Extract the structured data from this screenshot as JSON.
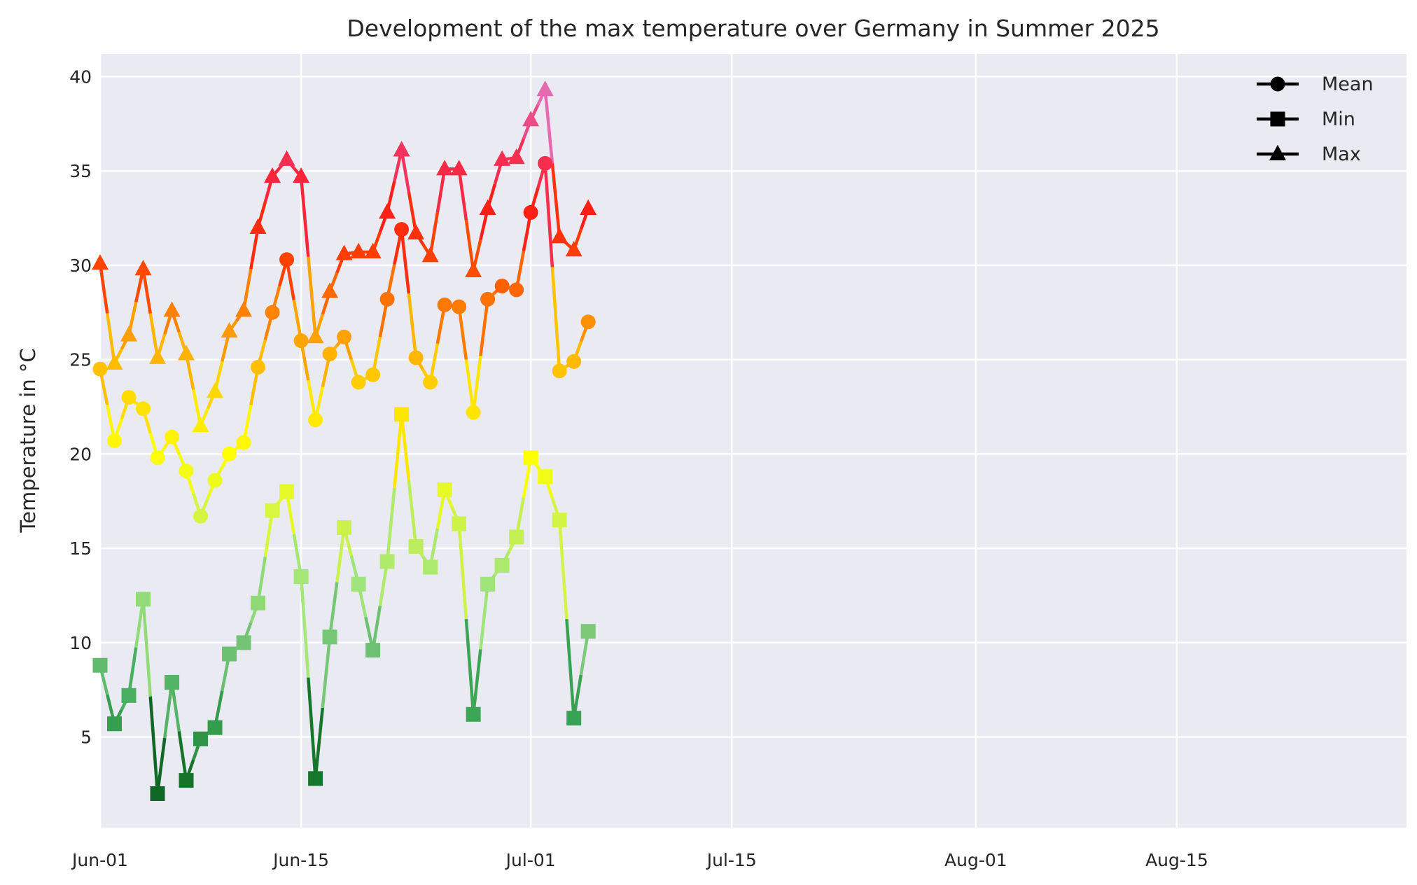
{
  "chart_data": {
    "type": "line",
    "title": "Development of the max temperature over Germany in Summer 2025",
    "xlabel": "",
    "ylabel": "Temperature in °C",
    "x_start": "2025-06-01",
    "x_ticks": [
      {
        "date": "2025-06-01",
        "label": "Jun-01"
      },
      {
        "date": "2025-06-15",
        "label": "Jun-15"
      },
      {
        "date": "2025-07-01",
        "label": "Jul-01"
      },
      {
        "date": "2025-07-15",
        "label": "Jul-15"
      },
      {
        "date": "2025-08-01",
        "label": "Aug-01"
      },
      {
        "date": "2025-08-15",
        "label": "Aug-15"
      }
    ],
    "xlim": [
      "2025-06-01",
      "2025-08-31"
    ],
    "ylim": [
      0.2,
      41.2
    ],
    "y_ticks": [
      5,
      10,
      15,
      20,
      25,
      30,
      35,
      40
    ],
    "grid": true,
    "legend_position": "top-right",
    "color_scale_min": 0,
    "color_scale_max": 40,
    "color_scale": [
      "#00441b",
      "#1a7f2e",
      "#41ab5d",
      "#74c476",
      "#a1e67a",
      "#d4f542",
      "#ffff00",
      "#ffd700",
      "#ff9800",
      "#ff4500",
      "#ff1a1a",
      "#f0386b",
      "#e377c2"
    ],
    "dates": [
      "2025-06-01",
      "2025-06-02",
      "2025-06-03",
      "2025-06-04",
      "2025-06-05",
      "2025-06-06",
      "2025-06-07",
      "2025-06-08",
      "2025-06-09",
      "2025-06-10",
      "2025-06-11",
      "2025-06-12",
      "2025-06-13",
      "2025-06-14",
      "2025-06-15",
      "2025-06-16",
      "2025-06-17",
      "2025-06-18",
      "2025-06-19",
      "2025-06-20",
      "2025-06-21",
      "2025-06-22",
      "2025-06-23",
      "2025-06-24",
      "2025-06-25",
      "2025-06-26",
      "2025-06-27",
      "2025-06-28",
      "2025-06-29",
      "2025-06-30",
      "2025-07-01",
      "2025-07-02",
      "2025-07-03",
      "2025-07-04",
      "2025-07-05"
    ],
    "series": [
      {
        "name": "Mean",
        "marker": "circle",
        "values": [
          24.5,
          20.7,
          23.0,
          22.4,
          19.8,
          20.9,
          19.1,
          16.7,
          18.6,
          20.0,
          20.6,
          24.6,
          27.5,
          30.3,
          26.0,
          21.8,
          25.3,
          26.2,
          23.8,
          24.2,
          28.2,
          31.9,
          25.1,
          23.8,
          27.9,
          27.8,
          22.2,
          28.2,
          28.9,
          28.7,
          32.8,
          35.4,
          24.4,
          24.9,
          27.0
        ]
      },
      {
        "name": "Min",
        "marker": "square",
        "values": [
          8.8,
          5.7,
          7.2,
          12.3,
          2.0,
          7.9,
          2.7,
          4.9,
          5.5,
          9.4,
          10.0,
          12.1,
          17.0,
          18.0,
          13.5,
          2.8,
          10.3,
          16.1,
          13.1,
          9.6,
          14.3,
          22.1,
          15.1,
          14.0,
          18.1,
          16.3,
          6.2,
          13.1,
          14.1,
          15.6,
          19.8,
          18.8,
          16.5,
          6.0,
          10.6
        ]
      },
      {
        "name": "Max",
        "marker": "triangle",
        "values": [
          30.1,
          24.8,
          26.3,
          29.8,
          25.1,
          27.6,
          25.3,
          21.5,
          23.3,
          26.5,
          27.6,
          32.0,
          34.7,
          35.6,
          34.7,
          26.2,
          28.6,
          30.6,
          30.7,
          30.7,
          32.8,
          36.1,
          31.7,
          30.5,
          35.1,
          35.1,
          29.7,
          33.0,
          35.6,
          35.7,
          37.7,
          39.3,
          31.5,
          30.8,
          33.0
        ]
      }
    ],
    "legend_color": "#000000",
    "background_color": "#eaeaf2",
    "grid_color": "#ffffff"
  }
}
